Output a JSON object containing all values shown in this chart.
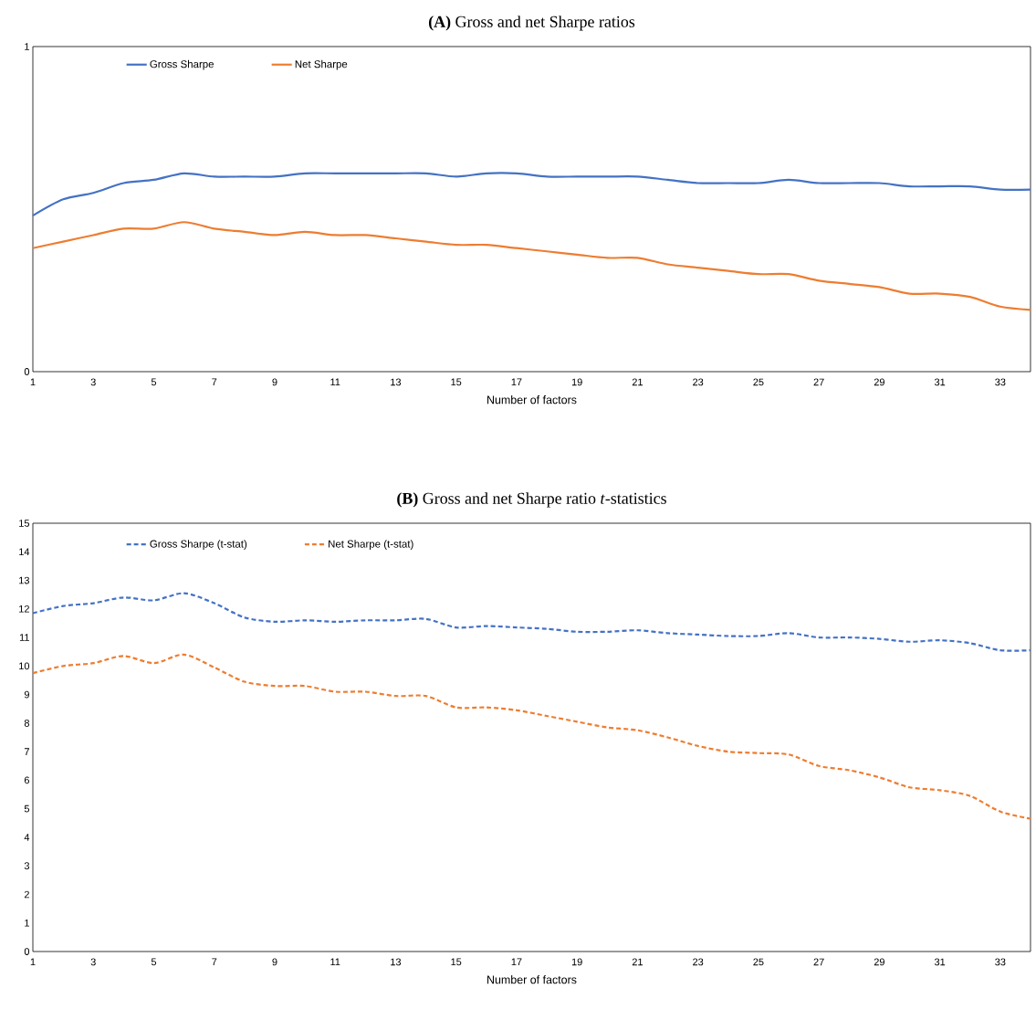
{
  "chart_data": [
    {
      "type": "line",
      "title": "**(A)** Gross and net Sharpe ratios",
      "xlabel": "Number of factors",
      "x": [
        1,
        2,
        3,
        4,
        5,
        6,
        7,
        8,
        9,
        10,
        11,
        12,
        13,
        14,
        15,
        16,
        17,
        18,
        19,
        20,
        21,
        22,
        23,
        24,
        25,
        26,
        27,
        28,
        29,
        30,
        31,
        32,
        33,
        34
      ],
      "xlim": [
        1,
        34
      ],
      "xticks": [
        1,
        3,
        5,
        7,
        9,
        11,
        13,
        15,
        17,
        19,
        21,
        23,
        25,
        27,
        29,
        31,
        33
      ],
      "ylim": [
        0,
        1
      ],
      "yticks": [
        0,
        1
      ],
      "legend": "top left",
      "line_style": "solid",
      "grid": false,
      "series": [
        {
          "name": "Gross Sharpe",
          "color": "#4472c4",
          "values": [
            0.48,
            0.53,
            0.55,
            0.58,
            0.59,
            0.61,
            0.6,
            0.6,
            0.6,
            0.61,
            0.61,
            0.61,
            0.61,
            0.61,
            0.6,
            0.61,
            0.61,
            0.6,
            0.6,
            0.6,
            0.6,
            0.59,
            0.58,
            0.58,
            0.58,
            0.59,
            0.58,
            0.58,
            0.58,
            0.57,
            0.57,
            0.57,
            0.56,
            0.56
          ]
        },
        {
          "name": "Net Sharpe",
          "color": "#ed7d31",
          "values": [
            0.38,
            0.4,
            0.42,
            0.44,
            0.44,
            0.46,
            0.44,
            0.43,
            0.42,
            0.43,
            0.42,
            0.42,
            0.41,
            0.4,
            0.39,
            0.39,
            0.38,
            0.37,
            0.36,
            0.35,
            0.35,
            0.33,
            0.32,
            0.31,
            0.3,
            0.3,
            0.28,
            0.27,
            0.26,
            0.24,
            0.24,
            0.23,
            0.2,
            0.19
          ]
        }
      ]
    },
    {
      "type": "line",
      "title": "**(B)** Gross and net Sharpe ratio *t*-statistics",
      "xlabel": "Number of factors",
      "x": [
        1,
        2,
        3,
        4,
        5,
        6,
        7,
        8,
        9,
        10,
        11,
        12,
        13,
        14,
        15,
        16,
        17,
        18,
        19,
        20,
        21,
        22,
        23,
        24,
        25,
        26,
        27,
        28,
        29,
        30,
        31,
        32,
        33,
        34
      ],
      "xlim": [
        1,
        34
      ],
      "xticks": [
        1,
        3,
        5,
        7,
        9,
        11,
        13,
        15,
        17,
        19,
        21,
        23,
        25,
        27,
        29,
        31,
        33
      ],
      "ylim": [
        0,
        15
      ],
      "yticks": [
        0,
        1,
        2,
        3,
        4,
        5,
        6,
        7,
        8,
        9,
        10,
        11,
        12,
        13,
        14,
        15
      ],
      "legend": "top left",
      "line_style": "dashed",
      "grid": false,
      "series": [
        {
          "name": "Gross Sharpe (t-stat)",
          "color": "#4472c4",
          "values": [
            11.85,
            12.1,
            12.2,
            12.4,
            12.3,
            12.55,
            12.2,
            11.7,
            11.55,
            11.6,
            11.55,
            11.6,
            11.6,
            11.65,
            11.35,
            11.4,
            11.35,
            11.3,
            11.2,
            11.2,
            11.25,
            11.15,
            11.1,
            11.05,
            11.05,
            11.15,
            11.0,
            11.0,
            10.95,
            10.85,
            10.9,
            10.8,
            10.55,
            10.55
          ]
        },
        {
          "name": "Net Sharpe (t-stat)",
          "color": "#ed7d31",
          "values": [
            9.75,
            10.0,
            10.1,
            10.35,
            10.1,
            10.4,
            9.95,
            9.45,
            9.3,
            9.3,
            9.1,
            9.1,
            8.95,
            8.95,
            8.55,
            8.55,
            8.45,
            8.25,
            8.05,
            7.85,
            7.75,
            7.5,
            7.2,
            7.0,
            6.95,
            6.9,
            6.5,
            6.35,
            6.1,
            5.75,
            5.65,
            5.45,
            4.9,
            4.65
          ]
        }
      ]
    }
  ]
}
